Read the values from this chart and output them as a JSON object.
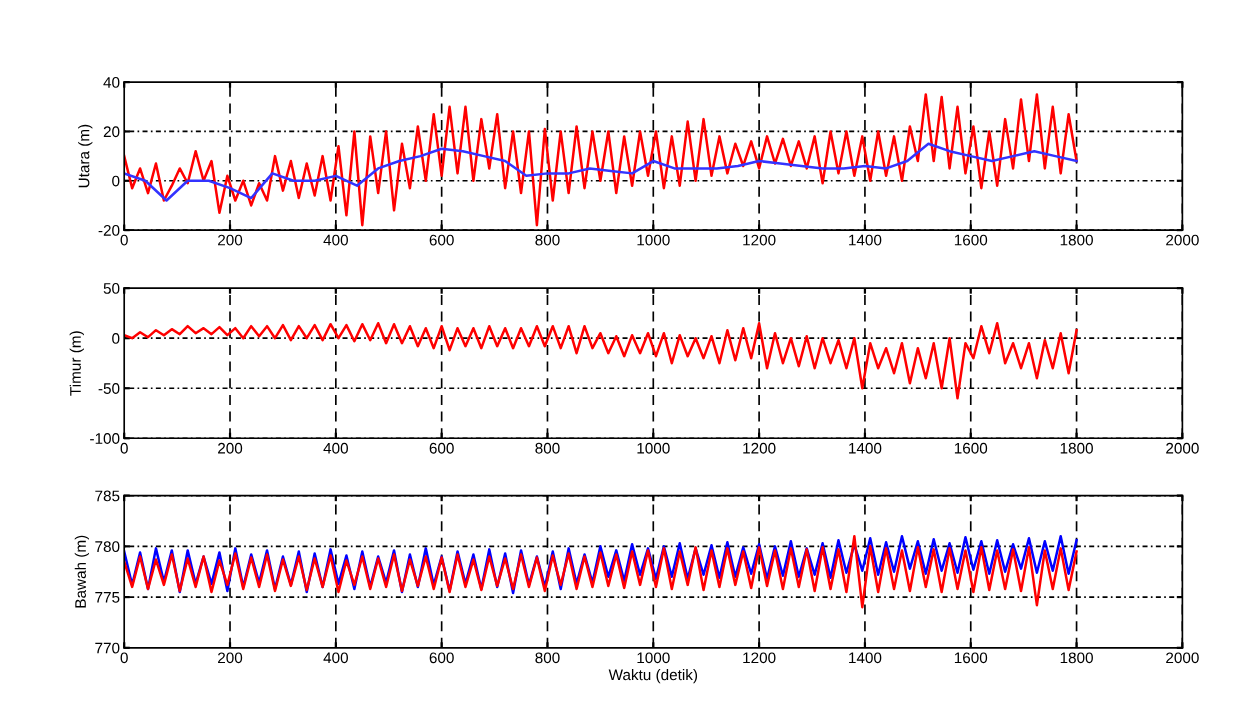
{
  "chart_data": [
    {
      "type": "line",
      "ylabel": "Utara (m)",
      "xlim": [
        0,
        2000
      ],
      "xticks": [
        0,
        200,
        400,
        600,
        800,
        1000,
        1200,
        1400,
        1600,
        1800,
        2000
      ],
      "ylim": [
        -20,
        40
      ],
      "yticks": [
        -20,
        0,
        20,
        40
      ],
      "grid": true,
      "x": [
        0,
        15,
        30,
        45,
        60,
        75,
        90,
        105,
        120,
        135,
        150,
        165,
        180,
        195,
        210,
        225,
        240,
        255,
        270,
        285,
        300,
        315,
        330,
        345,
        360,
        375,
        390,
        405,
        420,
        435,
        450,
        465,
        480,
        495,
        510,
        525,
        540,
        555,
        570,
        585,
        600,
        615,
        630,
        645,
        660,
        675,
        690,
        705,
        720,
        735,
        750,
        765,
        780,
        795,
        810,
        825,
        840,
        855,
        870,
        885,
        900,
        915,
        930,
        945,
        960,
        975,
        990,
        1005,
        1020,
        1035,
        1050,
        1065,
        1080,
        1095,
        1110,
        1125,
        1140,
        1155,
        1170,
        1185,
        1200,
        1215,
        1230,
        1245,
        1260,
        1275,
        1290,
        1305,
        1320,
        1335,
        1350,
        1365,
        1380,
        1395,
        1410,
        1425,
        1440,
        1455,
        1470,
        1485,
        1500,
        1515,
        1530,
        1545,
        1560,
        1575,
        1590,
        1605,
        1620,
        1635,
        1650,
        1665,
        1680,
        1695,
        1710,
        1725,
        1740,
        1755,
        1770,
        1785,
        1800
      ],
      "series": [
        {
          "color": "#ff0000",
          "values": [
            10,
            -3,
            5,
            -5,
            7,
            -8,
            -2,
            5,
            -1,
            12,
            0,
            8,
            -13,
            2,
            -8,
            0,
            -10,
            -1,
            -8,
            10,
            -4,
            8,
            -7,
            7,
            -6,
            10,
            -8,
            14,
            -14,
            20,
            -18,
            18,
            -5,
            20,
            -12,
            15,
            -3,
            22,
            0,
            27,
            2,
            30,
            3,
            30,
            0,
            25,
            5,
            27,
            -3,
            20,
            -5,
            20,
            -18,
            21,
            -8,
            20,
            -5,
            22,
            -3,
            20,
            0,
            20,
            -5,
            18,
            -2,
            20,
            2,
            20,
            -3,
            18,
            -2,
            24,
            0,
            25,
            2,
            18,
            3,
            15,
            6,
            16,
            5,
            18,
            7,
            17,
            6,
            16,
            5,
            18,
            -1,
            20,
            3,
            20,
            2,
            18,
            0,
            20,
            2,
            18,
            0,
            22,
            8,
            35,
            8,
            34,
            5,
            30,
            3,
            22,
            -3,
            20,
            -2,
            25,
            5,
            33,
            8,
            35,
            5,
            30,
            3,
            27,
            8
          ]
        },
        {
          "color": "#3333ff",
          "x": [
            0,
            40,
            80,
            120,
            160,
            200,
            240,
            280,
            320,
            360,
            400,
            440,
            480,
            520,
            560,
            600,
            640,
            680,
            720,
            760,
            800,
            840,
            880,
            920,
            960,
            1000,
            1040,
            1080,
            1120,
            1160,
            1200,
            1240,
            1280,
            1320,
            1360,
            1400,
            1440,
            1480,
            1520,
            1560,
            1600,
            1640,
            1680,
            1720,
            1760,
            1800
          ],
          "values": [
            3,
            0,
            -8,
            0,
            0,
            -3,
            -7,
            3,
            0,
            0,
            2,
            -2,
            5,
            8,
            10,
            13,
            12,
            10,
            8,
            2,
            3,
            3,
            5,
            4,
            3,
            8,
            5,
            5,
            5,
            6,
            8,
            7,
            6,
            5,
            5,
            6,
            5,
            8,
            15,
            12,
            10,
            8,
            10,
            12,
            10,
            8
          ]
        }
      ]
    },
    {
      "type": "line",
      "ylabel": "Timur (m)",
      "xlim": [
        0,
        2000
      ],
      "xticks": [
        0,
        200,
        400,
        600,
        800,
        1000,
        1200,
        1400,
        1600,
        1800,
        2000
      ],
      "ylim": [
        -100,
        50
      ],
      "yticks": [
        -100,
        -50,
        0,
        50
      ],
      "grid": true,
      "x": [
        0,
        15,
        30,
        45,
        60,
        75,
        90,
        105,
        120,
        135,
        150,
        165,
        180,
        195,
        210,
        225,
        240,
        255,
        270,
        285,
        300,
        315,
        330,
        345,
        360,
        375,
        390,
        405,
        420,
        435,
        450,
        465,
        480,
        495,
        510,
        525,
        540,
        555,
        570,
        585,
        600,
        615,
        630,
        645,
        660,
        675,
        690,
        705,
        720,
        735,
        750,
        765,
        780,
        795,
        810,
        825,
        840,
        855,
        870,
        885,
        900,
        915,
        930,
        945,
        960,
        975,
        990,
        1005,
        1020,
        1035,
        1050,
        1065,
        1080,
        1095,
        1110,
        1125,
        1140,
        1155,
        1170,
        1185,
        1200,
        1215,
        1230,
        1245,
        1260,
        1275,
        1290,
        1305,
        1320,
        1335,
        1350,
        1365,
        1380,
        1395,
        1410,
        1425,
        1440,
        1455,
        1470,
        1485,
        1500,
        1515,
        1530,
        1545,
        1560,
        1575,
        1590,
        1605,
        1620,
        1635,
        1650,
        1665,
        1680,
        1695,
        1710,
        1725,
        1740,
        1755,
        1770,
        1785,
        1800
      ],
      "series": [
        {
          "color": "#ff0000",
          "values": [
            3,
            0,
            6,
            1,
            8,
            3,
            9,
            4,
            12,
            5,
            10,
            4,
            11,
            3,
            10,
            0,
            12,
            2,
            12,
            0,
            13,
            -2,
            12,
            0,
            13,
            -2,
            14,
            0,
            13,
            -3,
            14,
            -2,
            15,
            -5,
            14,
            -5,
            12,
            -8,
            10,
            -10,
            12,
            -12,
            10,
            -8,
            10,
            -10,
            12,
            -8,
            10,
            -10,
            10,
            -8,
            12,
            -8,
            12,
            -10,
            12,
            -15,
            12,
            -10,
            5,
            -15,
            2,
            -18,
            3,
            -15,
            5,
            -18,
            5,
            -25,
            3,
            -18,
            0,
            -20,
            2,
            -25,
            8,
            -22,
            10,
            -20,
            15,
            -30,
            5,
            -25,
            0,
            -28,
            2,
            -30,
            0,
            -25,
            -2,
            -30,
            0,
            -50,
            -5,
            -30,
            -10,
            -35,
            -5,
            -45,
            -10,
            -40,
            -5,
            -50,
            0,
            -60,
            -5,
            -20,
            12,
            -15,
            15,
            -25,
            -5,
            -30,
            -5,
            -40,
            -2,
            -30,
            5,
            -35,
            8
          ]
        }
      ]
    },
    {
      "type": "line",
      "ylabel": "Bawah (m)",
      "xlabel": "Waktu (detik)",
      "xlim": [
        0,
        2000
      ],
      "xticks": [
        0,
        200,
        400,
        600,
        800,
        1000,
        1200,
        1400,
        1600,
        1800,
        2000
      ],
      "ylim": [
        770,
        785
      ],
      "yticks": [
        770,
        775,
        780,
        785
      ],
      "grid": true,
      "x": [
        0,
        15,
        30,
        45,
        60,
        75,
        90,
        105,
        120,
        135,
        150,
        165,
        180,
        195,
        210,
        225,
        240,
        255,
        270,
        285,
        300,
        315,
        330,
        345,
        360,
        375,
        390,
        405,
        420,
        435,
        450,
        465,
        480,
        495,
        510,
        525,
        540,
        555,
        570,
        585,
        600,
        615,
        630,
        645,
        660,
        675,
        690,
        705,
        720,
        735,
        750,
        765,
        780,
        795,
        810,
        825,
        840,
        855,
        870,
        885,
        900,
        915,
        930,
        945,
        960,
        975,
        990,
        1005,
        1020,
        1035,
        1050,
        1065,
        1080,
        1095,
        1110,
        1125,
        1140,
        1155,
        1170,
        1185,
        1200,
        1215,
        1230,
        1245,
        1260,
        1275,
        1290,
        1305,
        1320,
        1335,
        1350,
        1365,
        1380,
        1395,
        1410,
        1425,
        1440,
        1455,
        1470,
        1485,
        1500,
        1515,
        1530,
        1545,
        1560,
        1575,
        1590,
        1605,
        1620,
        1635,
        1650,
        1665,
        1680,
        1695,
        1710,
        1725,
        1740,
        1755,
        1770,
        1785,
        1800
      ],
      "series": [
        {
          "color": "#0000ff",
          "values": [
            779.5,
            776.2,
            779.4,
            775.8,
            779.8,
            776.5,
            779.6,
            775.5,
            779.6,
            776.3,
            779.0,
            776.3,
            779.4,
            775.6,
            779.8,
            776.0,
            779.2,
            776.4,
            779.6,
            775.8,
            779.0,
            776.2,
            779.5,
            775.5,
            779.3,
            776.0,
            779.7,
            776.3,
            779.1,
            775.8,
            779.5,
            776.0,
            779.0,
            776.4,
            779.6,
            775.5,
            779.2,
            776.0,
            779.8,
            776.2,
            779.0,
            775.6,
            779.5,
            776.3,
            779.2,
            775.8,
            779.7,
            776.0,
            779.3,
            775.4,
            779.6,
            776.2,
            779.0,
            776.0,
            779.5,
            775.8,
            779.8,
            776.3,
            779.2,
            776.4,
            780.0,
            777.0,
            779.6,
            776.6,
            780.2,
            777.2,
            779.8,
            776.8,
            780.0,
            777.0,
            780.3,
            776.8,
            779.8,
            777.2,
            780.1,
            776.9,
            780.4,
            777.0,
            779.9,
            777.3,
            780.2,
            776.8,
            780.0,
            777.1,
            780.5,
            777.0,
            779.8,
            777.2,
            780.3,
            776.9,
            780.6,
            777.4,
            780.2,
            777.6,
            780.8,
            777.2,
            780.4,
            777.5,
            781.0,
            777.8,
            780.5,
            777.3,
            780.7,
            777.6,
            780.3,
            777.4,
            780.9,
            777.7,
            780.5,
            777.3,
            780.6,
            777.5,
            780.2,
            777.8,
            780.8,
            777.4,
            780.5,
            777.6,
            781.0,
            777.3,
            780.6
          ]
        },
        {
          "color": "#ff0000",
          "values": [
            778.5,
            776.0,
            779.0,
            775.8,
            778.7,
            776.2,
            779.2,
            775.6,
            778.8,
            776.0,
            779.0,
            775.5,
            778.6,
            776.2,
            779.3,
            775.8,
            778.9,
            776.0,
            779.2,
            775.6,
            778.7,
            776.1,
            779.0,
            775.7,
            778.8,
            776.0,
            779.1,
            775.5,
            778.6,
            776.2,
            779.0,
            775.8,
            778.8,
            776.0,
            779.2,
            775.6,
            778.7,
            776.1,
            779.0,
            775.8,
            778.9,
            775.5,
            779.2,
            776.0,
            778.7,
            775.7,
            779.0,
            776.1,
            778.8,
            775.8,
            779.2,
            776.0,
            778.9,
            775.6,
            779.1,
            776.2,
            779.3,
            775.8,
            779.0,
            776.0,
            779.4,
            776.1,
            779.2,
            775.9,
            779.5,
            776.2,
            779.6,
            776.0,
            779.8,
            775.8,
            779.5,
            776.2,
            779.9,
            775.7,
            779.6,
            776.0,
            779.8,
            776.2,
            779.5,
            775.9,
            779.9,
            776.1,
            779.6,
            775.8,
            779.8,
            776.0,
            779.7,
            775.6,
            779.9,
            775.8,
            779.7,
            775.5,
            781.0,
            774.0,
            780.0,
            775.5,
            779.8,
            775.8,
            779.6,
            775.6,
            779.9,
            776.0,
            779.7,
            775.5,
            779.8,
            775.8,
            779.6,
            775.5,
            779.9,
            775.7,
            779.6,
            775.8,
            779.7,
            775.6,
            779.9,
            774.2,
            779.6,
            775.8,
            779.8,
            775.7,
            779.5
          ]
        }
      ]
    }
  ]
}
